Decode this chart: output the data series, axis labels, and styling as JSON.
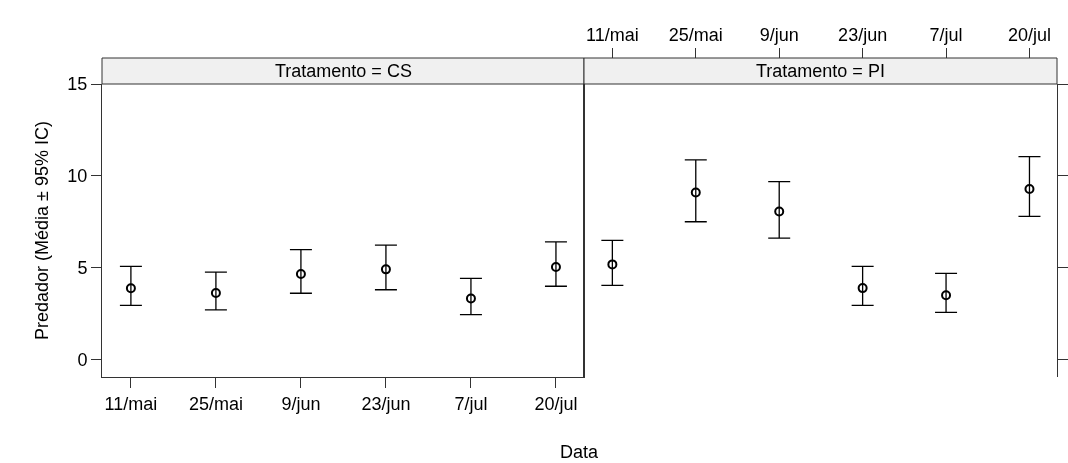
{
  "chart_data": [
    {
      "type": "scatter",
      "title": "Tratamento = CS",
      "xlabel": "Data",
      "ylabel": "Predador (Média ± 95% IC)",
      "categories": [
        "11/mai",
        "25/mai",
        "9/jun",
        "23/jun",
        "7/jul",
        "20/jul"
      ],
      "values": [
        3.88,
        3.62,
        4.66,
        4.91,
        3.32,
        5.04
      ],
      "errors": [
        [
          2.95,
          5.07
        ],
        [
          2.7,
          4.76
        ],
        [
          3.61,
          5.98
        ],
        [
          3.8,
          6.23
        ],
        [
          2.45,
          4.42
        ],
        [
          3.99,
          6.41
        ]
      ],
      "color": "#000000",
      "marker": "circle",
      "ylim": [
        -0.95,
        15
      ],
      "yticks": [
        0,
        5,
        10,
        15
      ]
    },
    {
      "type": "scatter",
      "title": "Tratamento = PI",
      "categories": [
        "11/mai",
        "25/mai",
        "9/jun",
        "23/jun",
        "7/jul",
        "20/jul"
      ],
      "values": [
        5.18,
        9.09,
        8.06,
        3.89,
        3.5,
        9.28
      ],
      "errors": [
        [
          4.04,
          6.49
        ],
        [
          7.5,
          10.87
        ],
        [
          6.61,
          9.69
        ],
        [
          2.95,
          5.07
        ],
        [
          2.57,
          4.69
        ],
        [
          7.79,
          11.05
        ]
      ],
      "color": "#000000",
      "marker": "circle",
      "ylim": [
        -0.95,
        15
      ],
      "yticks": [
        0,
        5,
        10,
        15
      ],
      "tick_labels": "x"
    }
  ]
}
